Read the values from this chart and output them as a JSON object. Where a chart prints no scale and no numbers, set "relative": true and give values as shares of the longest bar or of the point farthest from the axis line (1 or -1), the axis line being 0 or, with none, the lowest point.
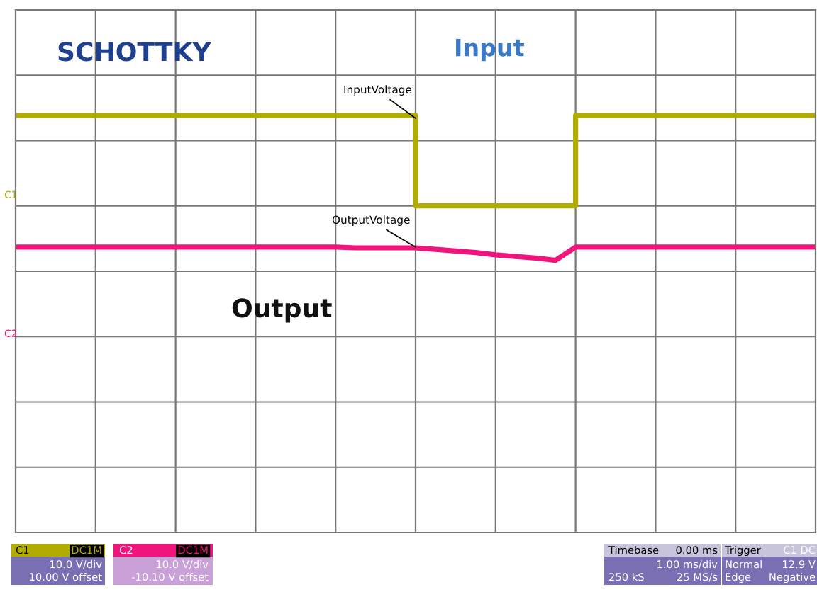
{
  "chart_data": {
    "type": "line",
    "relative": true,
    "grid": true,
    "legend": false,
    "categories": [
      null,
      null,
      null,
      null,
      null,
      null,
      null,
      null,
      null,
      null,
      null,
      null,
      null,
      null,
      null,
      null,
      null,
      null,
      null,
      null,
      null,
      null,
      null,
      null,
      null,
      null,
      null,
      null,
      null,
      null,
      null,
      null,
      null,
      null,
      null,
      null,
      null,
      null,
      null,
      null,
      null
    ],
    "series": [
      {
        "name": "InputVoltage",
        "type": "step",
        "color": "#b3ac00",
        "values": [
          1,
          1,
          1,
          1,
          1,
          1,
          1,
          1,
          1,
          1,
          1,
          1,
          1,
          1,
          1,
          1,
          1,
          1,
          1,
          1,
          0.42,
          0.42,
          0.42,
          0.42,
          0.42,
          0.42,
          0.42,
          0.42,
          1,
          1,
          1,
          1,
          1,
          1,
          1,
          1,
          1,
          1,
          1,
          1,
          1
        ]
      },
      {
        "name": "OutputVoltage",
        "color": "#f0157c",
        "values": [
          0.155,
          0.155,
          0.155,
          0.155,
          0.155,
          0.155,
          0.155,
          0.155,
          0.155,
          0.155,
          0.155,
          0.155,
          0.155,
          0.155,
          0.155,
          0.155,
          0.155,
          0.15,
          0.15,
          0.15,
          0.15,
          0.14,
          0.13,
          0.12,
          0.105,
          0.095,
          0.085,
          0.07,
          0.155,
          0.155,
          0.155,
          0.155,
          0.155,
          0.155,
          0.155,
          0.155,
          0.155,
          0.155,
          0.155,
          0.155,
          0.155
        ]
      }
    ],
    "annotations": [
      "SCHOTTKY",
      "Input",
      "Output",
      "C1",
      "C2",
      "C1",
      "DC1M",
      "10.0 V/div",
      "10.00 V offset",
      "C2",
      "DC1M",
      "10.0 V/div",
      "-10.10 V offset",
      "Timebase",
      "0.00 ms",
      "1.00 ms/div",
      "250 kS",
      "25 MS/s",
      "Trigger",
      "C1 DC",
      "Normal",
      "12.9 V",
      "Edge",
      "Negative"
    ]
  }
}
